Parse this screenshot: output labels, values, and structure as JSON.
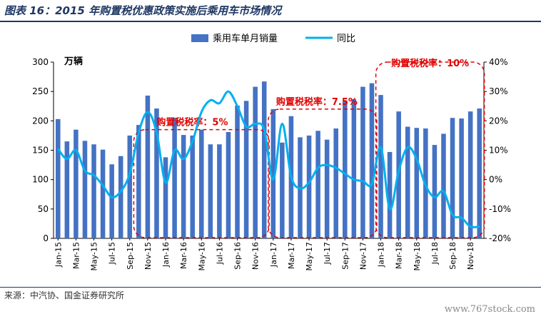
{
  "header": {
    "title": "图表 16：2015 年购置税优惠政策实施后乘用车市场情况"
  },
  "footer": {
    "source": "来源：中汽协、国金证券研究所",
    "watermark": "www.767stock.com"
  },
  "chart_data": {
    "type": "bar+line",
    "title": "",
    "y_unit_label": "万辆",
    "left_axis": {
      "min": 0,
      "max": 300,
      "ticks": [
        "0",
        "50",
        "100",
        "150",
        "200",
        "250",
        "300"
      ]
    },
    "right_axis": {
      "min": -20,
      "max": 40,
      "ticks": [
        "-20%",
        "-10%",
        "0%",
        "10%",
        "20%",
        "30%",
        "40%"
      ]
    },
    "legend": [
      {
        "name": "乘用车单月销量",
        "type": "bar",
        "color": "#4472c4"
      },
      {
        "name": "同比",
        "type": "line",
        "color": "#00b0f0"
      }
    ],
    "categories": [
      "Jan-15",
      "Feb-15",
      "Mar-15",
      "Apr-15",
      "May-15",
      "Jun-15",
      "Jul-15",
      "Aug-15",
      "Sep-15",
      "Oct-15",
      "Nov-15",
      "Dec-15",
      "Jan-16",
      "Feb-16",
      "Mar-16",
      "Apr-16",
      "May-16",
      "Jun-16",
      "Jul-16",
      "Aug-16",
      "Sep-16",
      "Oct-16",
      "Nov-16",
      "Dec-16",
      "Jan-17",
      "Feb-17",
      "Mar-17",
      "Apr-17",
      "May-17",
      "Jun-17",
      "Jul-17",
      "Aug-17",
      "Sep-17",
      "Oct-17",
      "Nov-17",
      "Dec-17",
      "Jan-18",
      "Feb-18",
      "Mar-18",
      "Apr-18",
      "May-18",
      "Jun-18",
      "Jul-18",
      "Aug-18",
      "Sep-18",
      "Oct-18",
      "Nov-18",
      "Dec-18"
    ],
    "x_tick_labels": [
      "Jan-15",
      "Mar-15",
      "May-15",
      "Jul-15",
      "Sep-15",
      "Nov-15",
      "Jan-16",
      "Mar-16",
      "May-16",
      "Jul-16",
      "Sep-16",
      "Nov-16",
      "Jan-17",
      "Mar-17",
      "May-17",
      "Jul-17",
      "Sep-17",
      "Nov-17",
      "Jan-18",
      "Mar-18",
      "May-18",
      "Jul-18",
      "Sep-18",
      "Nov-18"
    ],
    "series": [
      {
        "name": "乘用车单月销量",
        "axis": "left",
        "values": [
          203,
          165,
          185,
          166,
          160,
          151,
          126,
          140,
          175,
          193,
          243,
          221,
          138,
          205,
          176,
          175,
          185,
          160,
          160,
          181,
          226,
          234,
          258,
          267,
          220,
          163,
          208,
          172,
          175,
          183,
          168,
          187,
          234,
          237,
          258,
          264,
          244,
          147,
          216,
          190,
          188,
          187,
          159,
          178,
          205,
          204,
          216,
          221
        ]
      },
      {
        "name": "同比",
        "axis": "right",
        "values": [
          10.5,
          7,
          10,
          3,
          1.5,
          -2,
          -6,
          -4,
          2,
          16,
          23,
          16,
          -1,
          10,
          7,
          13,
          23,
          27,
          26,
          30,
          25,
          18,
          19,
          17,
          0,
          19,
          1,
          -3,
          -1,
          4,
          5,
          4,
          2,
          0,
          -0.5,
          -1.5,
          11,
          -10,
          3,
          11,
          7,
          -2,
          -6,
          -4,
          -12,
          -13,
          -16,
          -16
        ]
      }
    ],
    "annotations": [
      {
        "text": "购置税税率：5%",
        "start": "Oct-15",
        "end": "Dec-16"
      },
      {
        "text": "购置税税率：7.5%",
        "start": "Jan-17",
        "end": "Dec-17"
      },
      {
        "text": "购置税税率：10%",
        "start": "Jan-18",
        "end": "Dec-18"
      }
    ]
  }
}
